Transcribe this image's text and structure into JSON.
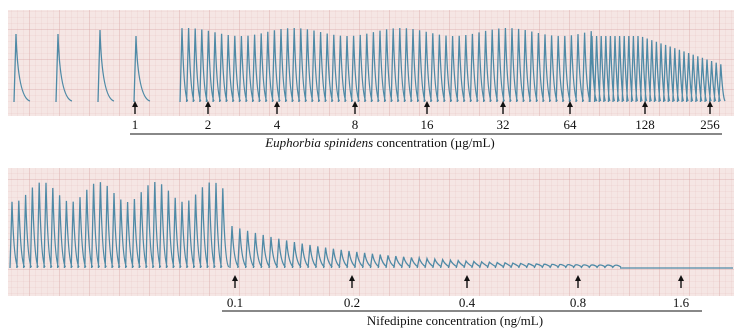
{
  "panels": [
    {
      "labels": [
        "1",
        "2",
        "4",
        "8",
        "16",
        "32",
        "64",
        "128",
        "256"
      ],
      "caption": {
        "italic": "Euphorbia spinidens",
        "rest": " concentration (µg/mL)"
      }
    },
    {
      "labels": [
        "0.1",
        "0.2",
        "0.4",
        "0.8",
        "1.6"
      ],
      "caption": {
        "italic": "",
        "rest": "Nifedipine concentration (ng/mL)"
      }
    }
  ]
}
